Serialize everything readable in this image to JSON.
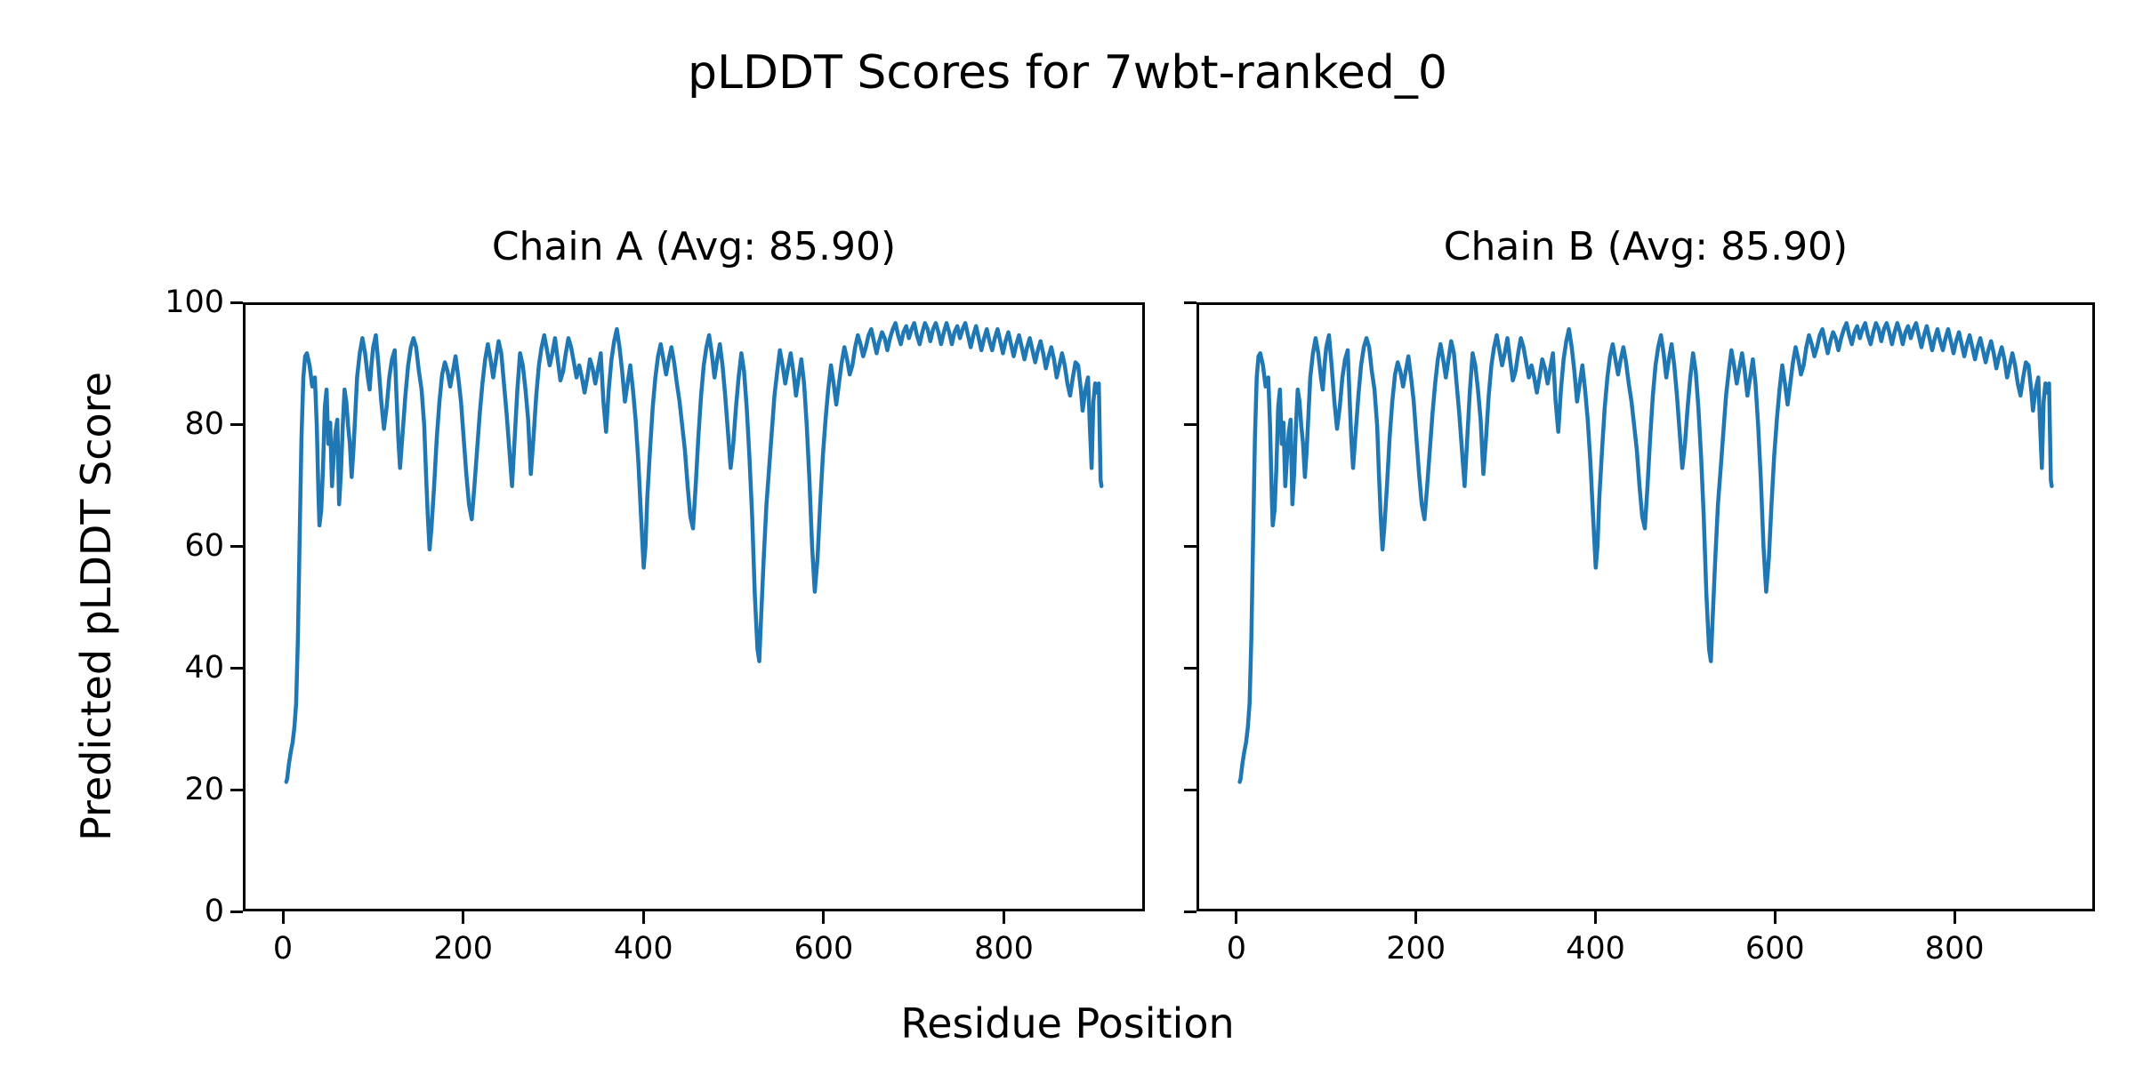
{
  "figure": {
    "suptitle": "pLDDT Scores for 7wbt-ranked_0",
    "xlabel": "Residue Position",
    "ylabel": "Predicted pLDDT Score"
  },
  "chart_data": {
    "type": "line",
    "title": "pLDDT Scores for 7wbt-ranked_0",
    "xlabel": "Residue Position",
    "ylabel": "Predicted pLDDT Score",
    "line_color": "#1f77b4",
    "background_color": "#ffffff",
    "grid": false,
    "legend": "none",
    "xlim": [
      -44.5,
      956.5
    ],
    "ylim": [
      0,
      100
    ],
    "xticks": [
      0,
      200,
      400,
      600,
      800
    ],
    "yticks": [
      0,
      20,
      40,
      60,
      80,
      100
    ],
    "subplots": [
      {
        "title": "Chain A (Avg: 85.90)",
        "chain": "A",
        "avg": 85.9
      },
      {
        "title": "Chain B (Avg: 85.90)",
        "chain": "B",
        "avg": 85.9
      }
    ],
    "note_series": "both chains plot the identical pLDDT profile",
    "x": [
      1,
      2,
      4,
      6,
      8,
      10,
      12,
      14,
      16,
      18,
      20,
      22,
      24,
      27,
      30,
      33,
      35,
      37,
      38,
      40,
      42,
      44,
      46,
      48,
      50,
      52,
      54,
      56,
      58,
      60,
      62,
      64,
      66,
      68,
      70,
      72,
      74,
      76,
      78,
      80,
      83,
      86,
      89,
      92,
      94,
      96,
      98,
      101,
      104,
      107,
      110,
      113,
      116,
      119,
      122,
      124,
      126,
      128,
      131,
      134,
      137,
      140,
      143,
      146,
      149,
      152,
      155,
      157,
      159,
      161,
      163,
      166,
      169,
      172,
      175,
      178,
      181,
      184,
      187,
      190,
      193,
      196,
      199,
      202,
      205,
      208,
      211,
      214,
      217,
      220,
      223,
      226,
      229,
      232,
      235,
      238,
      241,
      244,
      247,
      250,
      253,
      256,
      259,
      262,
      265,
      268,
      271,
      274,
      277,
      280,
      283,
      286,
      289,
      292,
      295,
      298,
      301,
      304,
      307,
      310,
      313,
      316,
      319,
      322,
      325,
      328,
      331,
      334,
      337,
      340,
      343,
      346,
      349,
      352,
      355,
      358,
      361,
      364,
      367,
      370,
      373,
      376,
      379,
      382,
      385,
      388,
      391,
      394,
      397,
      400,
      402,
      404,
      407,
      410,
      413,
      416,
      419,
      422,
      425,
      428,
      431,
      434,
      437,
      440,
      443,
      446,
      449,
      452,
      455,
      458,
      461,
      464,
      467,
      470,
      473,
      476,
      479,
      482,
      485,
      488,
      491,
      494,
      497,
      500,
      503,
      506,
      509,
      512,
      515,
      518,
      521,
      524,
      527,
      529,
      531,
      534,
      537,
      540,
      543,
      546,
      549,
      552,
      555,
      558,
      561,
      564,
      567,
      570,
      573,
      576,
      579,
      582,
      585,
      588,
      591,
      594,
      597,
      600,
      603,
      606,
      609,
      612,
      615,
      618,
      621,
      624,
      627,
      630,
      633,
      636,
      639,
      642,
      645,
      648,
      651,
      654,
      657,
      660,
      663,
      666,
      669,
      672,
      675,
      678,
      681,
      684,
      687,
      690,
      693,
      696,
      699,
      702,
      705,
      708,
      711,
      714,
      717,
      720,
      723,
      726,
      729,
      732,
      735,
      738,
      741,
      744,
      747,
      750,
      753,
      756,
      759,
      762,
      765,
      768,
      771,
      774,
      777,
      780,
      783,
      786,
      789,
      792,
      795,
      798,
      801,
      804,
      807,
      810,
      813,
      816,
      819,
      822,
      825,
      828,
      831,
      834,
      837,
      840,
      843,
      846,
      849,
      852,
      855,
      858,
      861,
      864,
      867,
      870,
      873,
      876,
      879,
      882,
      885,
      888,
      890,
      893,
      896,
      898,
      900,
      902,
      904,
      906,
      908,
      910,
      911
    ],
    "y": [
      21,
      21.5,
      24,
      26,
      27.5,
      30,
      34,
      45,
      62,
      78,
      88,
      91.5,
      92,
      90,
      86.5,
      88,
      80,
      68,
      63.5,
      66,
      73,
      83,
      86,
      77,
      80.5,
      70,
      75,
      79,
      81,
      67,
      72,
      80,
      86,
      84,
      80,
      77,
      71.5,
      76,
      82,
      88,
      92,
      94.5,
      92,
      88,
      86,
      90,
      93,
      95,
      90,
      84,
      79.5,
      83,
      88,
      91,
      92.5,
      85,
      78,
      73,
      79,
      85,
      90,
      93,
      94.5,
      93,
      89,
      86,
      80,
      72,
      65,
      59.5,
      63,
      70,
      78,
      84,
      88.5,
      90.5,
      89,
      86.5,
      89,
      91.5,
      88,
      84,
      78,
      72,
      67,
      64.5,
      70,
      76,
      82,
      87,
      91,
      93.5,
      91,
      88,
      91,
      94,
      92,
      87,
      82,
      76,
      70,
      78,
      86,
      92,
      90,
      86,
      81,
      72,
      78,
      85,
      90,
      93,
      95,
      92.5,
      90,
      92,
      94.5,
      91,
      87.5,
      89,
      92,
      94.5,
      93,
      90.5,
      88,
      90,
      88,
      85.5,
      88,
      91,
      89.5,
      87,
      89.5,
      92,
      84,
      79,
      86,
      91,
      94,
      96,
      93,
      89,
      84,
      87,
      90,
      86,
      81,
      74,
      65,
      56.5,
      60,
      68,
      76,
      83,
      88,
      91.5,
      93.5,
      91,
      88.5,
      91,
      93,
      90.5,
      87,
      84,
      80,
      76,
      70,
      65,
      63,
      70,
      78,
      85,
      90,
      93,
      95,
      92,
      88,
      91,
      93.5,
      90,
      85,
      79,
      73,
      77,
      83,
      88,
      92,
      89,
      83,
      75,
      65,
      52,
      43,
      41,
      48,
      58,
      67,
      73,
      79,
      85,
      89,
      92.5,
      90,
      87,
      89.5,
      92,
      89,
      85,
      88,
      91,
      87,
      80,
      71,
      60,
      52.5,
      58,
      67,
      75,
      81,
      86,
      90,
      87,
      83.5,
      87,
      90.5,
      93,
      91,
      88.5,
      90,
      93,
      95,
      93.5,
      91.5,
      93,
      95,
      96,
      94,
      92,
      94,
      95.5,
      94.5,
      92.5,
      94.5,
      96,
      97,
      95,
      93.5,
      95.5,
      96.5,
      94.5,
      96,
      97,
      95,
      93.5,
      95.5,
      97,
      96,
      94,
      96,
      97,
      95.5,
      93.5,
      95.5,
      97,
      95.5,
      93.5,
      95.5,
      96.5,
      94.5,
      96,
      97,
      95,
      93,
      95,
      96.5,
      94.5,
      92.5,
      94.5,
      96,
      94,
      92.5,
      94.5,
      96,
      94,
      92,
      94,
      95.5,
      93.5,
      91.5,
      93.5,
      95,
      93,
      91,
      93,
      94.5,
      92.5,
      90.5,
      92.5,
      94,
      92,
      89.5,
      91.5,
      93,
      91,
      88,
      90,
      92,
      90,
      87,
      85,
      88,
      90.5,
      90,
      86,
      82.5,
      86,
      88,
      80,
      73,
      84,
      87,
      85.5,
      87,
      71,
      70
    ]
  }
}
